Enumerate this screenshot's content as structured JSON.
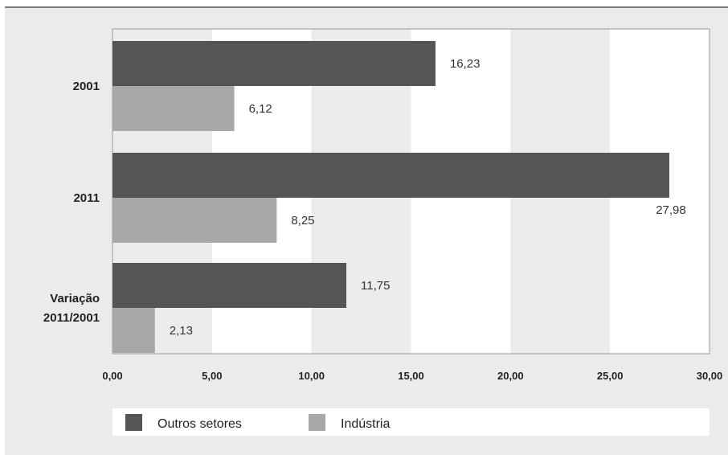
{
  "chart_data": {
    "type": "bar",
    "orientation": "horizontal",
    "categories": [
      "2001",
      "2011",
      "Variação 2011/2001"
    ],
    "category_lines": [
      [
        "2001"
      ],
      [
        "2011"
      ],
      [
        "Variação",
        "2011/2001"
      ]
    ],
    "series": [
      {
        "name": "Outros setores",
        "values": [
          16.23,
          27.98,
          11.75
        ],
        "labels": [
          "16,23",
          "27,98",
          "11,75"
        ],
        "color": "#555555"
      },
      {
        "name": "Indústria",
        "values": [
          6.12,
          8.25,
          2.13
        ],
        "labels": [
          "6,12",
          "8,25",
          "2,13"
        ],
        "color": "#a8a8aa"
      }
    ],
    "xlim": [
      0,
      30
    ],
    "xticks": [
      0,
      5,
      10,
      15,
      20,
      25,
      30
    ],
    "xtick_labels": [
      "0,00",
      "5,00",
      "10,00",
      "15,00",
      "20,00",
      "25,00",
      "30,00"
    ],
    "grid": "alternating vertical bands",
    "band_colors": [
      "#ececef",
      "#ffffff"
    ],
    "legend_position": "bottom-left"
  }
}
